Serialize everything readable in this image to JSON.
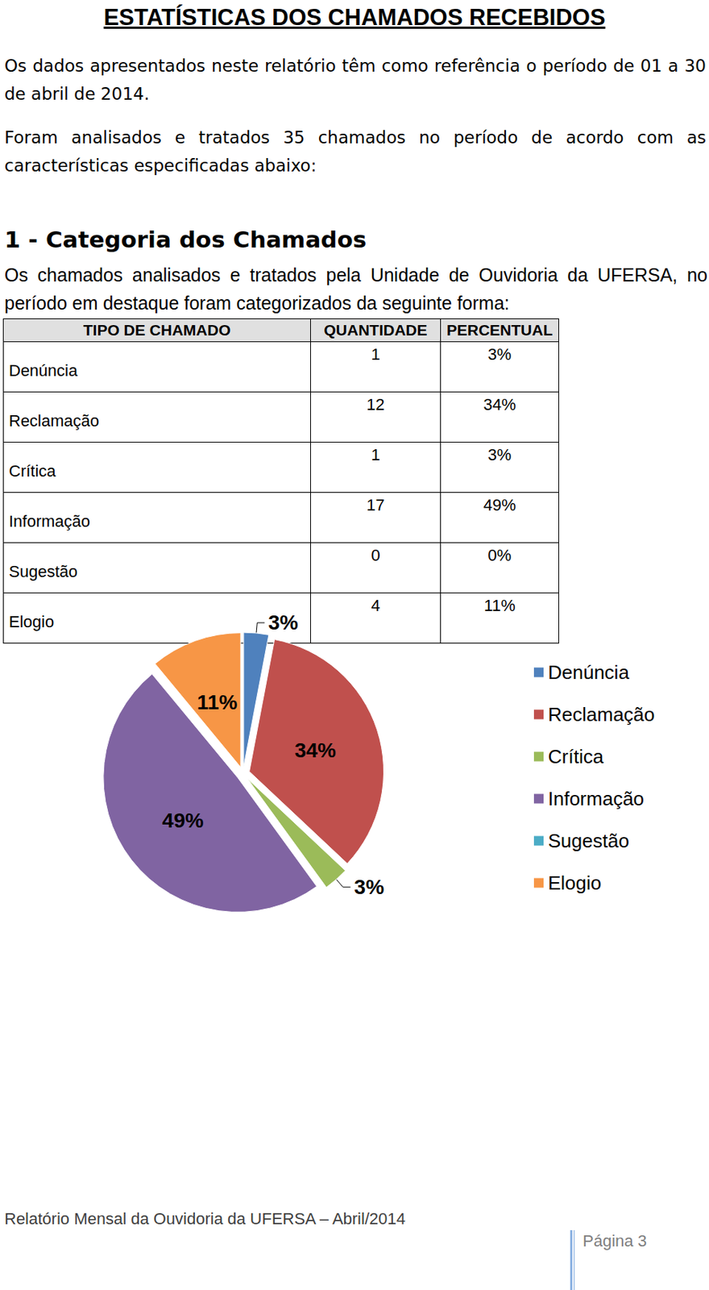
{
  "header": {
    "title": "ESTATÍSTICAS DOS CHAMADOS RECEBIDOS"
  },
  "paragraphs": [
    "Os dados apresentados neste relatório têm como referência o período de 01 a 30 de abril de 2014.",
    "Foram analisados e tratados 35 chamados no período de acordo com as características especificadas abaixo:"
  ],
  "section": {
    "heading": "1 - Categoria dos Chamados",
    "text": "Os chamados analisados e tratados pela Unidade de Ouvidoria da UFERSA, no período em destaque foram categorizados da seguinte forma:"
  },
  "table": {
    "columns": [
      "TIPO DE CHAMADO",
      "QUANTIDADE",
      "PERCENTUAL"
    ],
    "rows": [
      [
        "Denúncia",
        1,
        "3%"
      ],
      [
        "Reclamação",
        12,
        "34%"
      ],
      [
        "Crítica",
        1,
        "3%"
      ],
      [
        "Informação",
        17,
        "49%"
      ],
      [
        "Sugestão",
        0,
        "0%"
      ],
      [
        "Elogio",
        4,
        "11%"
      ]
    ]
  },
  "chart_data": {
    "type": "pie",
    "categories": [
      "Denúncia",
      "Reclamação",
      "Crítica",
      "Informação",
      "Sugestão",
      "Elogio"
    ],
    "values": [
      3,
      34,
      3,
      49,
      0,
      11
    ],
    "value_labels": [
      "3%",
      "34%",
      "3%",
      "49%",
      null,
      "11%"
    ],
    "colors": [
      "#4f81bd",
      "#c0504d",
      "#9bbb59",
      "#8064a2",
      "#4bacc6",
      "#f79646"
    ],
    "legend": "right",
    "data_labels": true
  },
  "footer": {
    "text": "Relatório Mensal da Ouvidoria da UFERSA – Abril/2014",
    "page": "Página 3"
  }
}
